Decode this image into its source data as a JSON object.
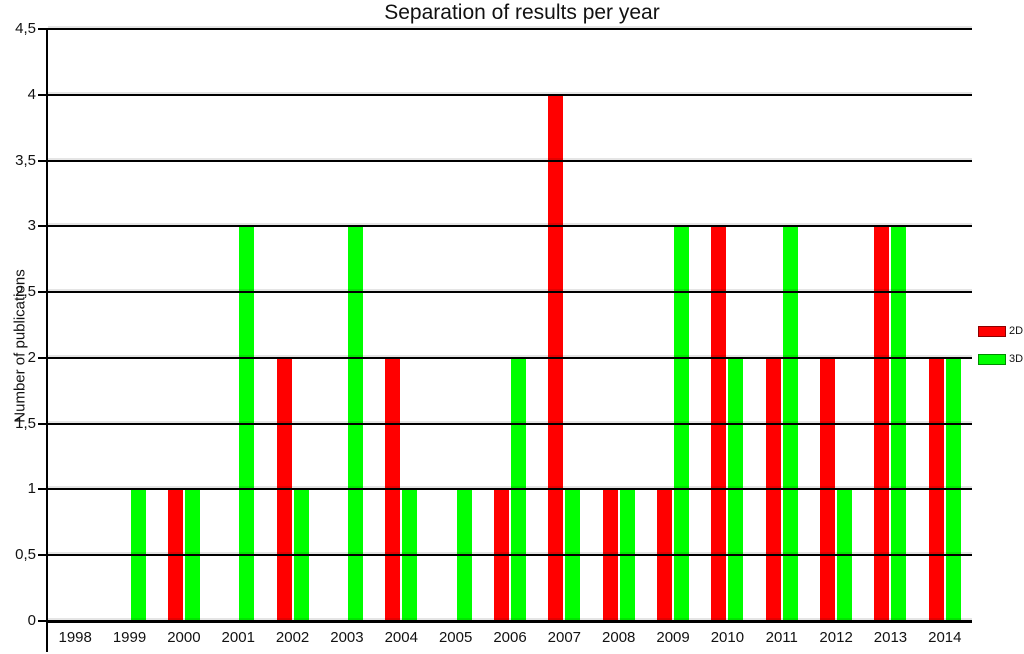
{
  "chart_data": {
    "type": "bar",
    "title": "Separation of results per year",
    "xlabel": "",
    "ylabel": "Number of publications",
    "categories": [
      "1998",
      "1999",
      "2000",
      "2001",
      "2002",
      "2003",
      "2004",
      "2005",
      "2006",
      "2007",
      "2008",
      "2009",
      "2010",
      "2011",
      "2012",
      "2013",
      "2014"
    ],
    "series": [
      {
        "name": "2D",
        "color": "#ff0000",
        "values": [
          0,
          0,
          1,
          0,
          2,
          0,
          2,
          0,
          1,
          4,
          1,
          1,
          3,
          2,
          2,
          3,
          2
        ]
      },
      {
        "name": "3D",
        "color": "#00ff00",
        "values": [
          0,
          1,
          1,
          3,
          1,
          3,
          1,
          1,
          2,
          1,
          1,
          3,
          2,
          3,
          1,
          3,
          2
        ]
      }
    ],
    "ylim": [
      0,
      4.5
    ],
    "ytick_step": 0.5,
    "ytick_labels": [
      "0",
      "0,5",
      "1",
      "1,5",
      "2",
      "2,5",
      "3",
      "3,5",
      "4",
      "4,5"
    ],
    "grid": "horizontal",
    "legend_position": "right",
    "axis_color": "#000000",
    "text_color": "#111111",
    "background_color": "#ffffff"
  }
}
